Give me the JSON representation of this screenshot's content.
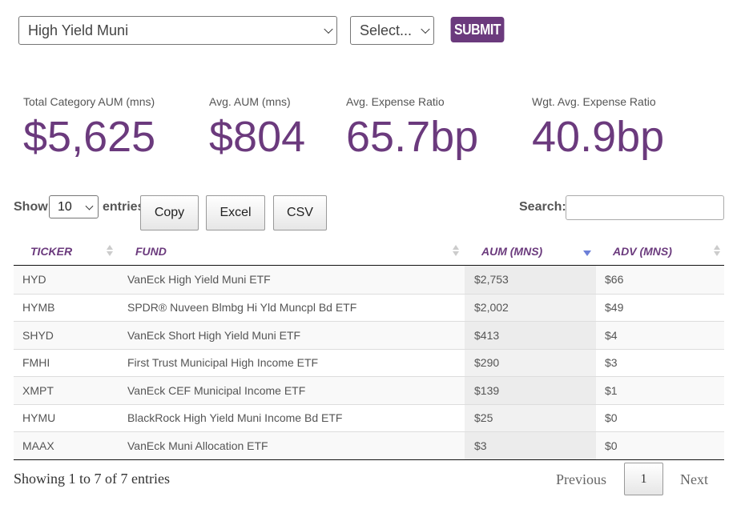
{
  "filters": {
    "category_value": "High Yield Muni",
    "sub_value": "Select...",
    "submit_label": "SUBMIT"
  },
  "stats": [
    {
      "label": "Total Category AUM (mns)",
      "value": "$5,625"
    },
    {
      "label": "Avg. AUM (mns)",
      "value": "$804"
    },
    {
      "label": "Avg. Expense Ratio",
      "value": "65.7bp"
    },
    {
      "label": "Wgt. Avg. Expense Ratio",
      "value": "40.9bp"
    }
  ],
  "controls": {
    "show_label": "Show",
    "entries_value": "10",
    "entries_label": "entries",
    "copy_label": "Copy",
    "excel_label": "Excel",
    "csv_label": "CSV",
    "search_label": "Search:",
    "search_value": ""
  },
  "table": {
    "columns": [
      "TICKER",
      "FUND",
      "AUM (MNS)",
      "ADV (MNS)"
    ],
    "sorted_column": "AUM (MNS)",
    "sort_direction": "descending",
    "rows": [
      {
        "ticker": "HYD",
        "fund": "VanEck High Yield Muni ETF",
        "aum": "$2,753",
        "adv": "$66"
      },
      {
        "ticker": "HYMB",
        "fund": "SPDR® Nuveen Blmbg Hi Yld Muncpl Bd ETF",
        "aum": "$2,002",
        "adv": "$49"
      },
      {
        "ticker": "SHYD",
        "fund": "VanEck Short High Yield Muni ETF",
        "aum": "$413",
        "adv": "$4"
      },
      {
        "ticker": "FMHI",
        "fund": "First Trust Municipal High Income ETF",
        "aum": "$290",
        "adv": "$3"
      },
      {
        "ticker": "XMPT",
        "fund": "VanEck CEF Municipal Income ETF",
        "aum": "$139",
        "adv": "$1"
      },
      {
        "ticker": "HYMU",
        "fund": "BlackRock High Yield Muni Income Bd ETF",
        "aum": "$25",
        "adv": "$0"
      },
      {
        "ticker": "MAAX",
        "fund": "VanEck Muni Allocation ETF",
        "aum": "$3",
        "adv": "$0"
      }
    ]
  },
  "footer": {
    "info": "Showing 1 to 7 of 7 entries",
    "previous_label": "Previous",
    "current_page": "1",
    "next_label": "Next"
  },
  "colors": {
    "brand_purple": "#6b3a7d",
    "sort_active": "#6c7fd8"
  }
}
